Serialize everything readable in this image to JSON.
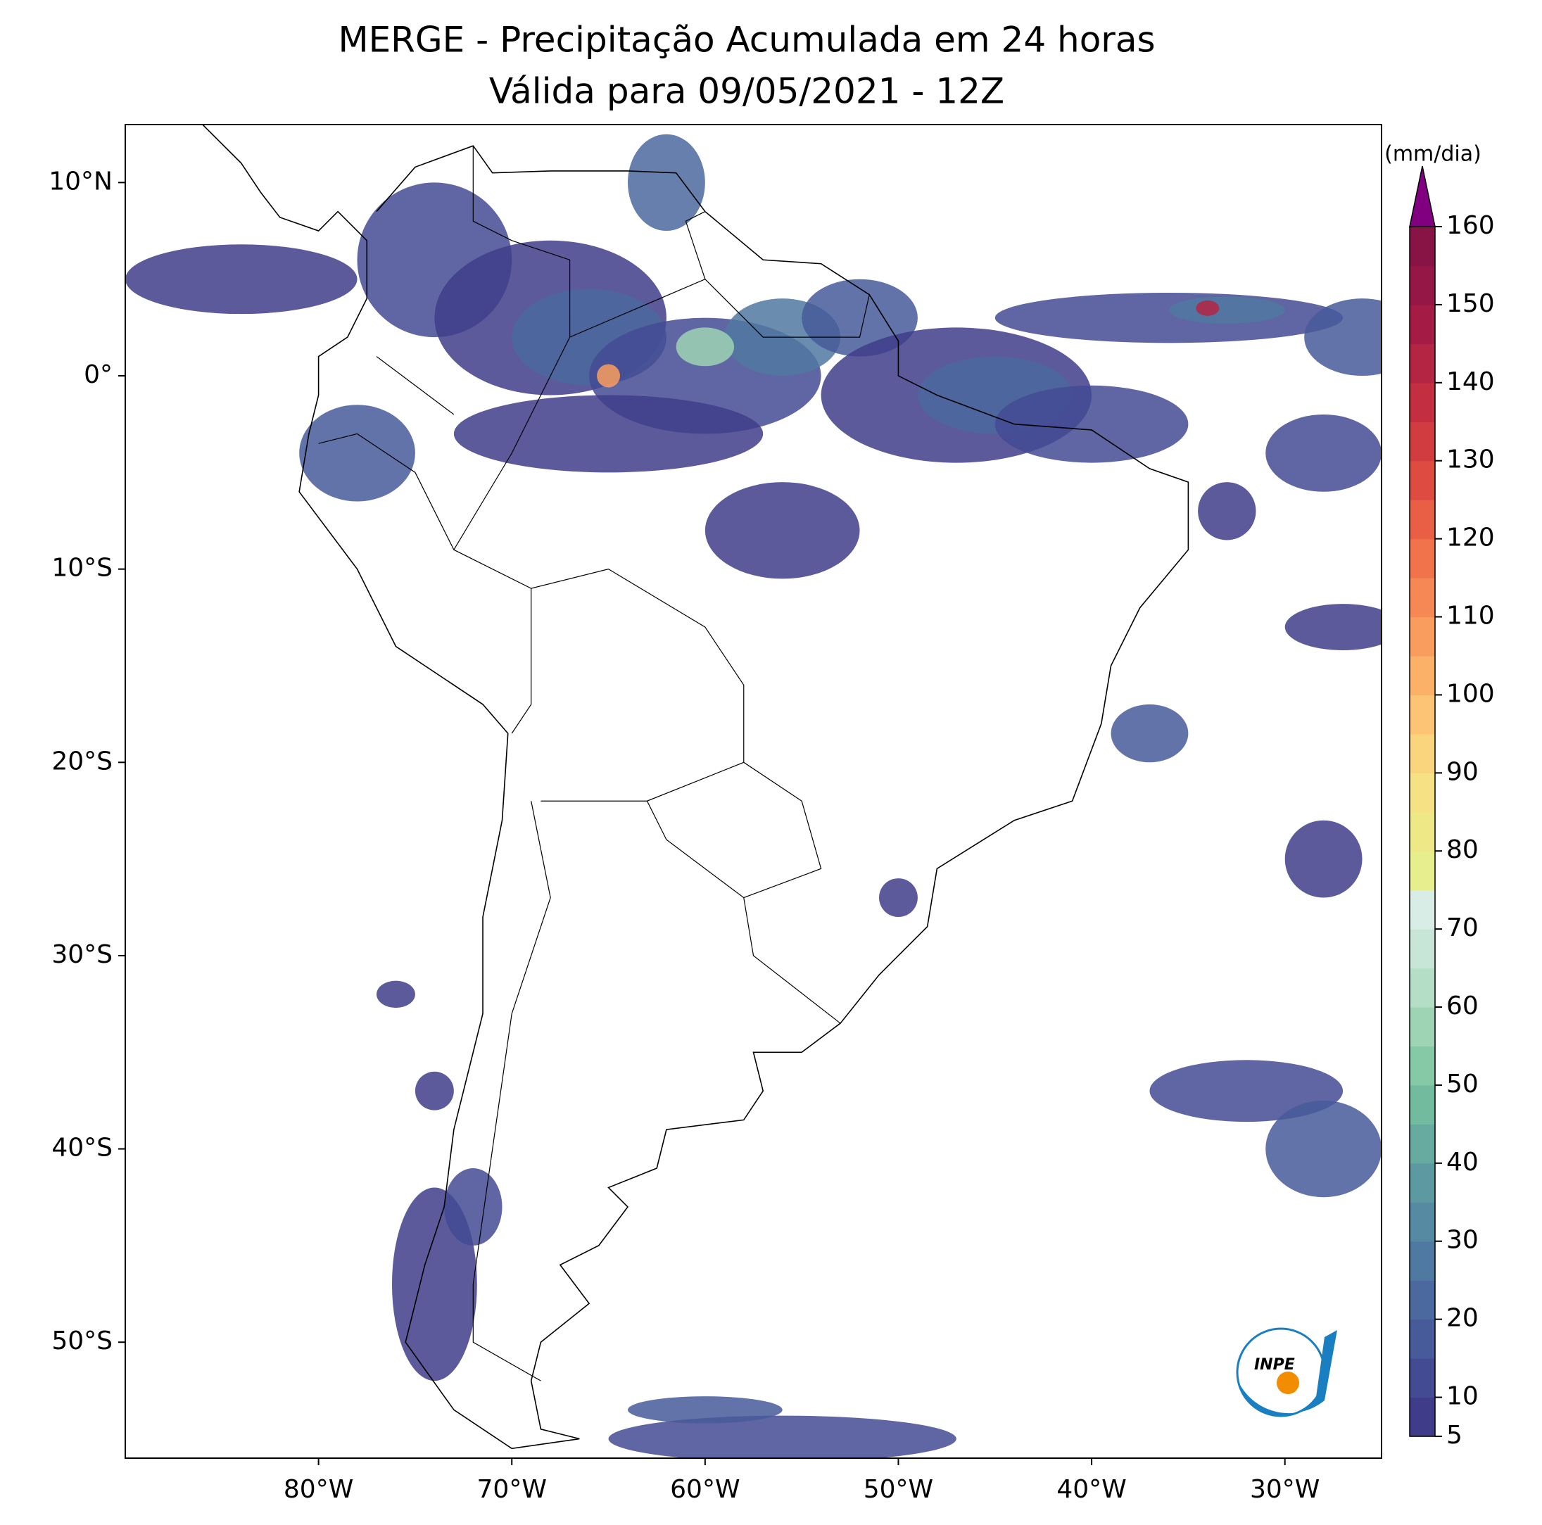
{
  "title": "MERGE - Precipitação Acumulada em 24 horas",
  "subtitle": "Válida para 09/05/2021 - 12Z",
  "map": {
    "lonlim": [
      -90,
      -25
    ],
    "latlim": [
      -56,
      13
    ],
    "lon_ticks": [
      {
        "value": -80,
        "label": "80°W"
      },
      {
        "value": -70,
        "label": "70°W"
      },
      {
        "value": -60,
        "label": "60°W"
      },
      {
        "value": -50,
        "label": "50°W"
      },
      {
        "value": -40,
        "label": "40°W"
      },
      {
        "value": -30,
        "label": "30°W"
      }
    ],
    "lat_ticks": [
      {
        "value": 10,
        "label": "10°N"
      },
      {
        "value": 0,
        "label": "0°"
      },
      {
        "value": -10,
        "label": "10°S"
      },
      {
        "value": -20,
        "label": "20°S"
      },
      {
        "value": -30,
        "label": "30°S"
      },
      {
        "value": -40,
        "label": "40°S"
      },
      {
        "value": -50,
        "label": "50°S"
      }
    ]
  },
  "colorbar": {
    "label": "(mm/dia)",
    "lim": [
      5,
      160
    ],
    "ticks": [
      5,
      10,
      20,
      30,
      40,
      50,
      60,
      70,
      80,
      90,
      100,
      110,
      120,
      130,
      140,
      150,
      160
    ],
    "colors": [
      "#3f3d8a",
      "#434b93",
      "#475a9a",
      "#4b699f",
      "#5079a1",
      "#5689a2",
      "#5d99a1",
      "#66aaa0",
      "#72bb9f",
      "#86c9a6",
      "#9ed4b4",
      "#b5dec6",
      "#c8e6d8",
      "#d8ede6",
      "#e6ef8c",
      "#eee886",
      "#f6e184",
      "#fbd57e",
      "#fcc474",
      "#fbb168",
      "#f99d5e",
      "#f68855",
      "#f1734c",
      "#e95f45",
      "#de4c41",
      "#d13c40",
      "#c32f41",
      "#b42443",
      "#a41c45",
      "#941746",
      "#871445"
    ],
    "extend_color": "#800080"
  },
  "logo": "INPE"
}
